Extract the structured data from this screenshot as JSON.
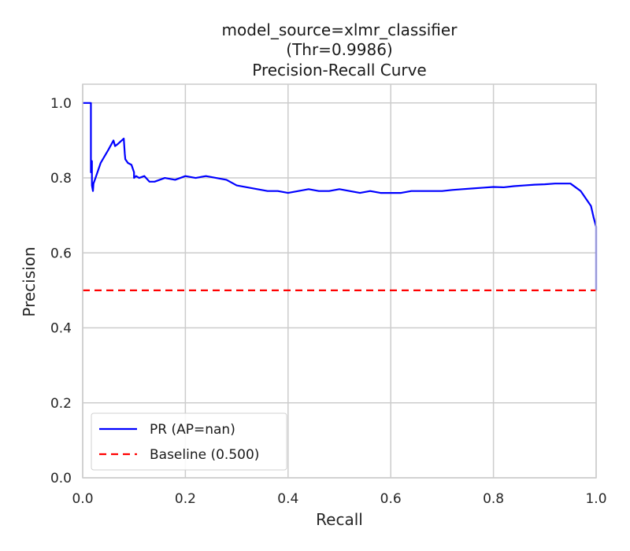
{
  "chart_data": {
    "type": "line",
    "title_lines": [
      "model_source=xlmr_classifier",
      "(Thr=0.9986)",
      "Precision-Recall Curve"
    ],
    "xlabel": "Recall",
    "ylabel": "Precision",
    "xlim": [
      0.0,
      1.0
    ],
    "ylim": [
      0.0,
      1.05
    ],
    "x_ticks": [
      "0.0",
      "0.2",
      "0.4",
      "0.6",
      "0.8",
      "1.0"
    ],
    "y_ticks": [
      "0.0",
      "0.2",
      "0.4",
      "0.6",
      "0.8",
      "1.0"
    ],
    "grid": true,
    "legend_position": "bottom-left",
    "series": [
      {
        "name": "PR (AP=nan)",
        "color": "#0000ff",
        "style": "solid",
        "x": [
          0.0,
          0.016,
          0.016,
          0.018,
          0.018,
          0.02,
          0.021,
          0.025,
          0.035,
          0.05,
          0.06,
          0.063,
          0.068,
          0.072,
          0.08,
          0.082,
          0.083,
          0.088,
          0.095,
          0.1,
          0.1,
          0.104,
          0.11,
          0.12,
          0.13,
          0.14,
          0.15,
          0.16,
          0.18,
          0.2,
          0.22,
          0.24,
          0.26,
          0.28,
          0.3,
          0.32,
          0.34,
          0.36,
          0.38,
          0.4,
          0.42,
          0.44,
          0.46,
          0.48,
          0.5,
          0.52,
          0.54,
          0.56,
          0.58,
          0.6,
          0.62,
          0.64,
          0.66,
          0.68,
          0.7,
          0.72,
          0.74,
          0.76,
          0.78,
          0.8,
          0.82,
          0.84,
          0.86,
          0.88,
          0.9,
          0.92,
          0.94,
          0.95,
          0.96,
          0.97,
          0.98,
          0.99,
          0.995,
          1.0,
          1.0
        ],
        "y": [
          1.0,
          1.0,
          0.815,
          0.845,
          0.78,
          0.765,
          0.785,
          0.8,
          0.84,
          0.875,
          0.9,
          0.885,
          0.89,
          0.895,
          0.905,
          0.865,
          0.85,
          0.84,
          0.835,
          0.815,
          0.8,
          0.805,
          0.8,
          0.805,
          0.79,
          0.79,
          0.795,
          0.8,
          0.795,
          0.805,
          0.8,
          0.805,
          0.8,
          0.795,
          0.78,
          0.775,
          0.77,
          0.765,
          0.765,
          0.76,
          0.765,
          0.77,
          0.765,
          0.765,
          0.77,
          0.765,
          0.76,
          0.765,
          0.76,
          0.76,
          0.76,
          0.765,
          0.765,
          0.765,
          0.765,
          0.768,
          0.77,
          0.772,
          0.774,
          0.776,
          0.775,
          0.778,
          0.78,
          0.782,
          0.783,
          0.785,
          0.785,
          0.785,
          0.775,
          0.765,
          0.745,
          0.725,
          0.695,
          0.67,
          0.5
        ]
      },
      {
        "name": "Baseline (0.500)",
        "color": "#ff0000",
        "style": "dashed",
        "x": [
          0.0,
          1.0
        ],
        "y": [
          0.5,
          0.5
        ]
      }
    ]
  }
}
